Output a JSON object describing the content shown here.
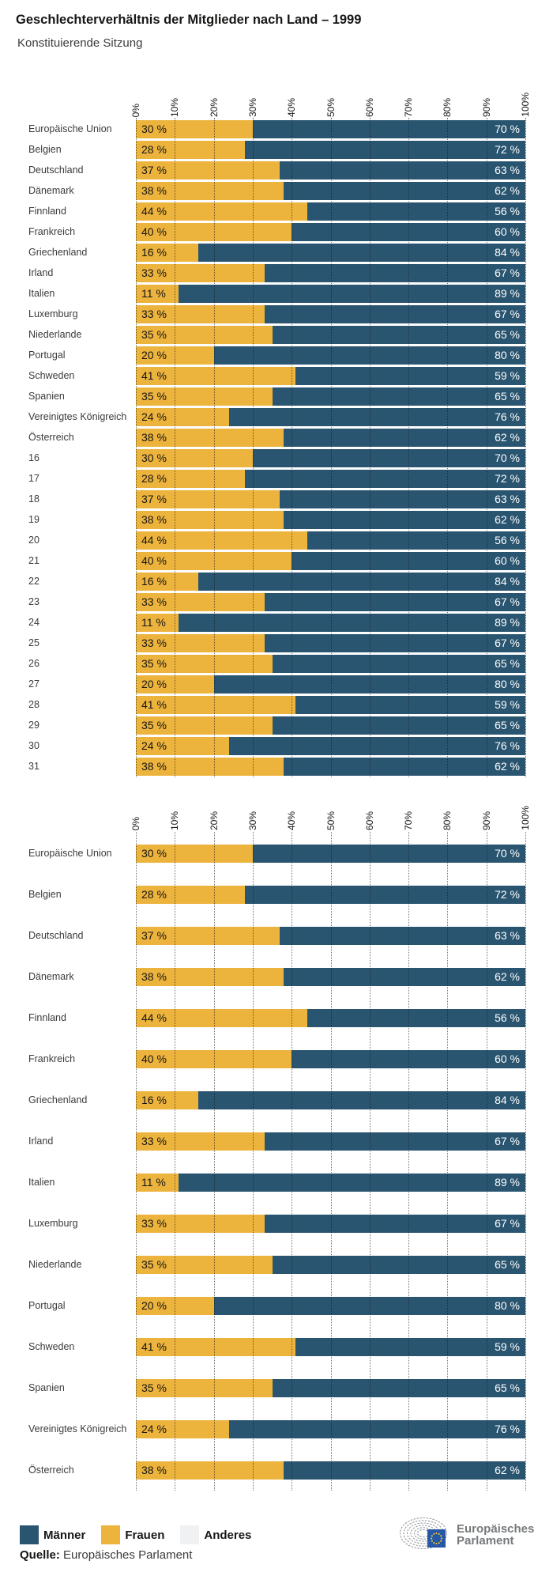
{
  "title": "Geschlechterverhältnis der Mitglieder nach Land – 1999",
  "subtitle": "Konstituierende Sitzung",
  "axis_tick_labels": [
    "0%",
    "10%",
    "20%",
    "30%",
    "40%",
    "50%",
    "60%",
    "70%",
    "80%",
    "90%",
    "100%"
  ],
  "chart_data": [
    {
      "type": "bar",
      "stacked": true,
      "orientation": "horizontal",
      "xlim": [
        0,
        100
      ],
      "grid": "dotted vertical lines every 10%",
      "value_suffix": " %",
      "categories": [
        "Europäische Union",
        "Belgien",
        "Deutschland",
        "Dänemark",
        "Finnland",
        "Frankreich",
        "Griechenland",
        "Irland",
        "Italien",
        "Luxemburg",
        "Niederlande",
        "Portugal",
        "Schweden",
        "Spanien",
        "Vereinigtes Königreich",
        "Österreich",
        "16",
        "17",
        "18",
        "19",
        "20",
        "21",
        "22",
        "23",
        "24",
        "25",
        "26",
        "27",
        "28",
        "29",
        "30",
        "31"
      ],
      "series": [
        {
          "name": "Frauen",
          "color": "#ecb33d",
          "values": [
            30,
            28,
            37,
            38,
            44,
            40,
            16,
            33,
            11,
            33,
            35,
            20,
            41,
            35,
            24,
            38,
            30,
            28,
            37,
            38,
            44,
            40,
            16,
            33,
            11,
            33,
            35,
            20,
            41,
            35,
            24,
            38
          ]
        },
        {
          "name": "Männer",
          "color": "#2a5570",
          "values": [
            70,
            72,
            63,
            62,
            56,
            60,
            84,
            67,
            89,
            67,
            65,
            80,
            59,
            65,
            76,
            62,
            70,
            72,
            63,
            62,
            56,
            60,
            84,
            67,
            89,
            67,
            65,
            80,
            59,
            65,
            76,
            62
          ]
        }
      ]
    },
    {
      "type": "bar",
      "stacked": true,
      "orientation": "horizontal",
      "xlim": [
        0,
        100
      ],
      "grid": "dotted vertical lines every 10%",
      "value_suffix": " %",
      "categories": [
        "Europäische Union",
        "Belgien",
        "Deutschland",
        "Dänemark",
        "Finnland",
        "Frankreich",
        "Griechenland",
        "Irland",
        "Italien",
        "Luxemburg",
        "Niederlande",
        "Portugal",
        "Schweden",
        "Spanien",
        "Vereinigtes Königreich",
        "Österreich"
      ],
      "series": [
        {
          "name": "Frauen",
          "color": "#ecb33d",
          "values": [
            30,
            28,
            37,
            38,
            44,
            40,
            16,
            33,
            11,
            33,
            35,
            20,
            41,
            35,
            24,
            38
          ]
        },
        {
          "name": "Männer",
          "color": "#2a5570",
          "values": [
            70,
            72,
            63,
            62,
            56,
            60,
            84,
            67,
            89,
            67,
            65,
            80,
            59,
            65,
            76,
            62
          ]
        }
      ]
    }
  ],
  "legend": {
    "items": [
      {
        "label": "Männer",
        "color": "#2a5570"
      },
      {
        "label": "Frauen",
        "color": "#ecb33d"
      },
      {
        "label": "Anderes",
        "color": "#f0f1f2"
      }
    ]
  },
  "source": {
    "prefix": "Quelle:",
    "text": "Europäisches Parlament"
  },
  "logo": {
    "line1": "Europäisches",
    "line2": "Parlament"
  },
  "colors": {
    "men": "#2a5570",
    "women": "#ecb33d",
    "other": "#f0f1f2",
    "flag_blue": "#2857a8",
    "flag_star_yellow": "#ffd617",
    "logo_gray": "#8d9296"
  }
}
